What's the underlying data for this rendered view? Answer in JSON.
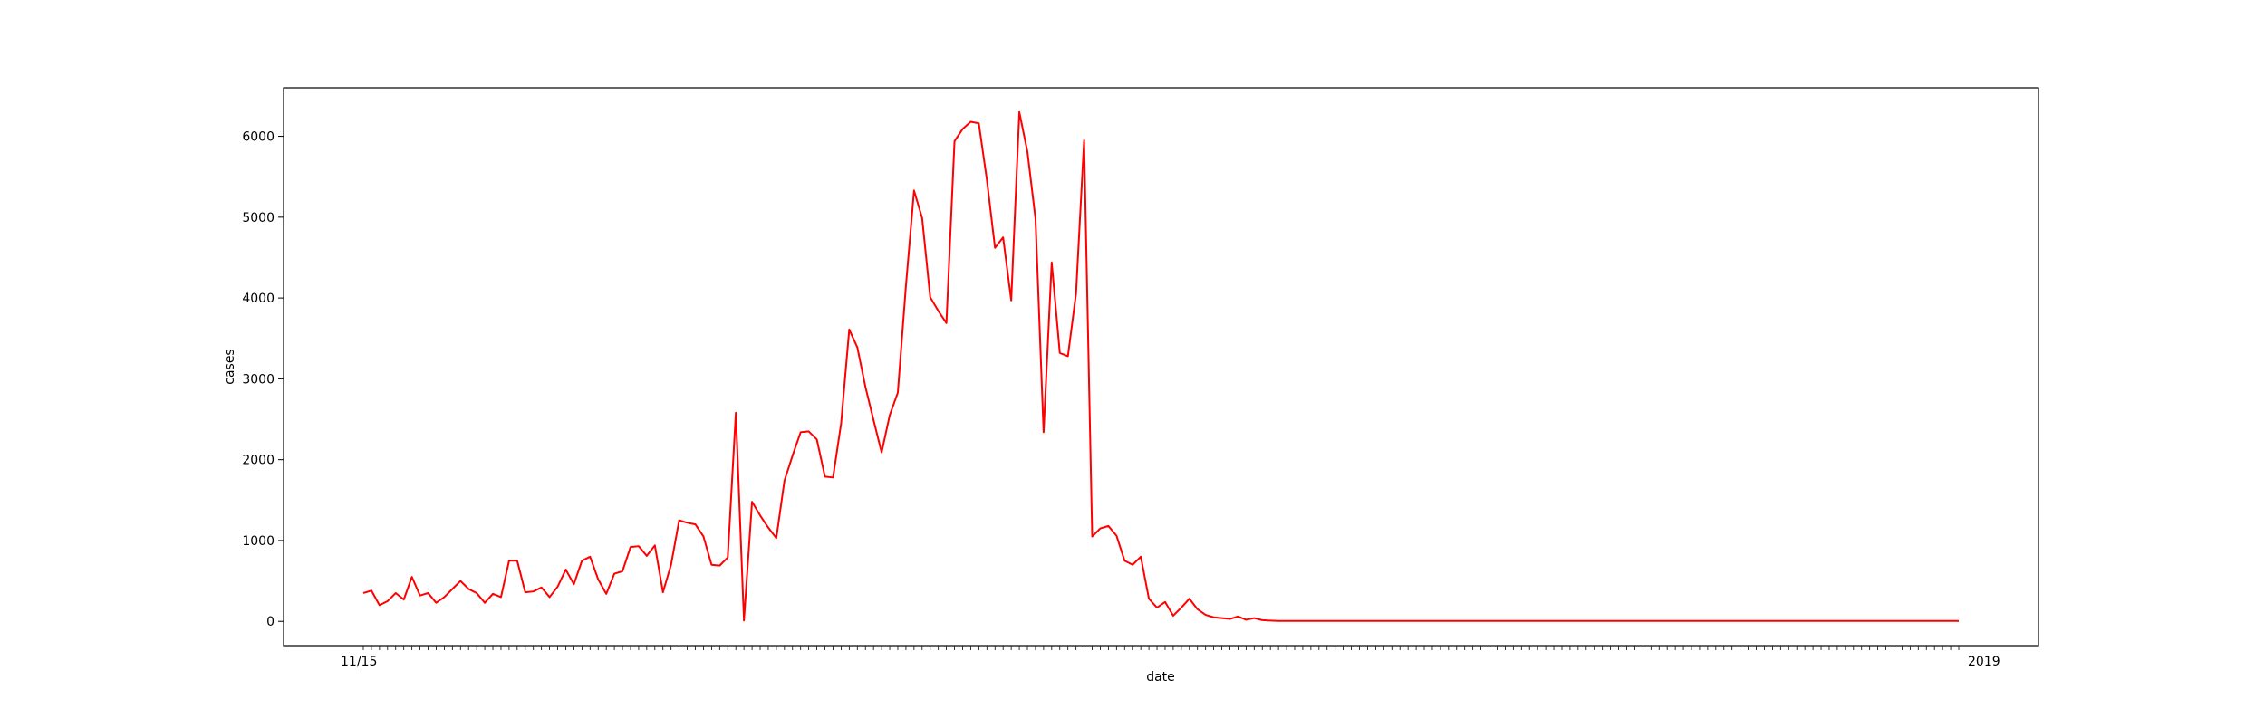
{
  "chart_data": {
    "type": "line",
    "xlabel": "date",
    "ylabel": "cases",
    "ylim": [
      -300,
      6600
    ],
    "yticks": [
      0,
      1000,
      2000,
      3000,
      4000,
      5000,
      6000
    ],
    "x_tick_labels_overlapping": [
      "11/15",
      "2019"
    ],
    "grid": false,
    "legend": "none",
    "series": [
      {
        "color": "#ff0000",
        "values": [
          350,
          380,
          200,
          250,
          350,
          270,
          550,
          320,
          350,
          230,
          300,
          400,
          500,
          400,
          350,
          230,
          340,
          300,
          750,
          750,
          360,
          370,
          420,
          300,
          430,
          640,
          460,
          750,
          800,
          520,
          340,
          590,
          620,
          920,
          930,
          810,
          940,
          360,
          700,
          1250,
          1220,
          1200,
          1050,
          700,
          690,
          790,
          2580,
          10,
          1480,
          1310,
          1160,
          1030,
          1740,
          2050,
          2340,
          2350,
          2250,
          1790,
          1780,
          2450,
          3610,
          3390,
          2900,
          2490,
          2090,
          2550,
          2830,
          4150,
          5330,
          4990,
          4010,
          3840,
          3690,
          5940,
          6090,
          6180,
          6160,
          5460,
          4620,
          4750,
          3970,
          6300,
          5810,
          4980,
          2340,
          4440,
          3320,
          3280,
          4050,
          5950,
          1050,
          1150,
          1180,
          1060,
          750,
          700,
          800,
          280,
          170,
          240,
          70,
          170,
          280,
          150,
          80,
          50,
          40,
          30,
          60,
          20,
          40,
          15,
          10,
          5,
          5,
          5,
          5,
          5,
          5,
          5,
          5,
          5,
          5,
          5,
          5,
          5,
          5,
          5,
          5,
          5,
          5,
          5,
          5,
          5,
          5,
          5,
          5,
          5,
          5,
          5,
          5,
          5,
          5,
          5,
          5,
          5,
          5,
          5,
          5,
          5,
          5,
          5,
          5,
          5,
          5,
          5,
          5,
          5,
          5,
          5,
          5,
          5,
          5,
          5,
          5,
          5,
          5,
          5,
          5,
          5,
          5,
          5,
          5,
          5,
          5,
          5,
          5,
          5,
          5,
          5,
          5,
          5,
          5,
          5,
          5,
          5,
          5,
          5,
          5,
          5,
          5,
          5,
          5,
          5,
          5,
          5,
          5,
          5
        ]
      }
    ]
  }
}
